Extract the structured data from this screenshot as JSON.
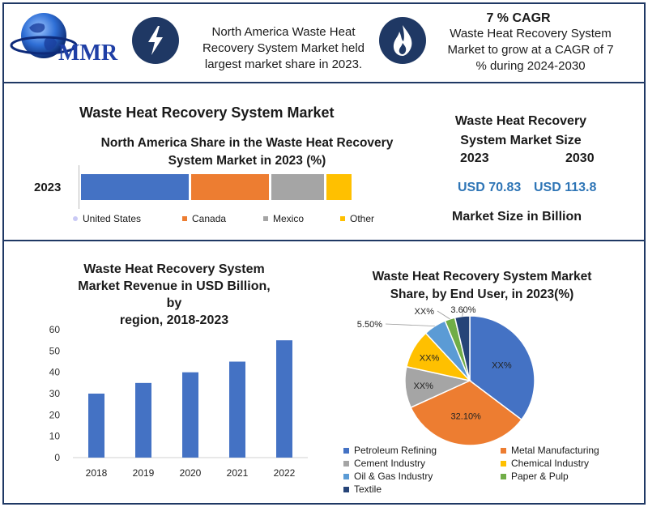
{
  "header": {
    "logo_text": "MMR",
    "fact1": [
      "North America Waste Heat",
      "Recovery System Market held",
      "largest market share in 2023."
    ],
    "cagr_title": "7 % CAGR",
    "fact2": [
      "Waste Heat Recovery System",
      "Market to grow at a CAGR of 7",
      "% during 2024-2030"
    ]
  },
  "main_title": "Waste Heat Recovery System Market",
  "share_chart": {
    "title_lines": [
      "North America Share in the Waste Heat Recovery",
      "System Market in 2023 (%)"
    ],
    "row_label": "2023",
    "legend": [
      "United States",
      "Canada",
      "Mexico",
      "Other"
    ]
  },
  "market_size": {
    "title_lines": [
      "Waste Heat Recovery",
      "System Market Size"
    ],
    "year1": "2023",
    "year2": "2030",
    "value1": "USD 70.83",
    "value2": "USD 113.8",
    "footer": "Market Size in Billion"
  },
  "revenue_chart": {
    "title_lines": [
      "Waste Heat Recovery System",
      "Market Revenue in USD Billion, by",
      "region, 2018-2023"
    ]
  },
  "pie_chart": {
    "title_lines": [
      "Waste Heat Recovery System Market",
      "Share, by End User, in 2023(%)"
    ]
  },
  "colors": {
    "navy": "#1f3864",
    "blue": "#4472c4",
    "orange": "#ed7d31",
    "gray": "#a5a5a5",
    "yellow": "#ffc000",
    "lightblue": "#5b9bd5",
    "green": "#70ad47",
    "darknavy": "#264478",
    "value_blue": "#2e75b6"
  },
  "chart_data": [
    {
      "type": "bar",
      "orientation": "horizontal-stacked",
      "title": "North America Share in the Waste Heat Recovery System Market in 2023 (%)",
      "categories": [
        "2023"
      ],
      "series": [
        {
          "name": "United States",
          "values": [
            40
          ]
        },
        {
          "name": "Canada",
          "values": [
            29
          ]
        },
        {
          "name": "Mexico",
          "values": [
            20
          ]
        },
        {
          "name": "Other",
          "values": [
            10
          ]
        }
      ],
      "xlim": [
        0,
        100
      ],
      "legend": "bottom"
    },
    {
      "type": "bar",
      "title": "Waste Heat Recovery System Market Revenue in USD Billion, by region, 2018-2023",
      "categories": [
        "2018",
        "2019",
        "2020",
        "2021",
        "2022"
      ],
      "values": [
        30,
        35,
        40,
        45,
        55
      ],
      "ylim": [
        0,
        60
      ],
      "yticks": [
        0,
        10,
        20,
        30,
        40,
        50,
        60
      ]
    },
    {
      "type": "pie",
      "title": "Waste Heat Recovery System Market Share, by End User, in 2023(%)",
      "labels": [
        "Petroleum Refining",
        "Metal Manufacturing",
        "Cement Industry",
        "Chemical Industry",
        "Oil & Gas Industry",
        "Paper & Pulp",
        "Textile"
      ],
      "values": [
        34.4,
        32.1,
        10.0,
        9.4,
        5.5,
        2.5,
        3.6
      ],
      "data_labels": [
        "XX%",
        "32.10%",
        "XX%",
        "XX%",
        "5.50%",
        "XX%",
        "3.60%"
      ],
      "legend": "bottom"
    }
  ]
}
